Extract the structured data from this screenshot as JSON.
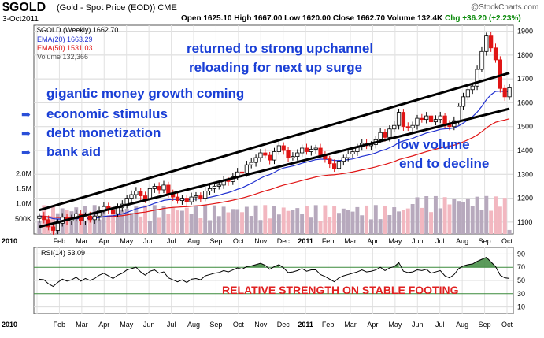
{
  "header": {
    "ticker": "$GOLD",
    "name": "(Gold - Spot Price (EOD)) CME",
    "site": "@StockCharts.com",
    "date": "3-Oct2011",
    "ohlc": "Open 1625.10  High 1667.00  Low 1620.00  Close 1662.70  Volume 132.4K",
    "chg": "Chg +36.20 (+2.23%)"
  },
  "legend": {
    "price": "$GOLD (Weekly) 1662.70",
    "ema20": "EMA(20) 1663.29",
    "ema50": "EMA(50) 1531.03",
    "volume": "Volume 132,366",
    "rsi": "RSI(14) 53.09"
  },
  "annotations": {
    "line1": "returned to strong upchannel",
    "line2": "reloading for next up surge",
    "money": "gigantic money growth coming",
    "item1": "economic stimulus",
    "item2": "debt monetization",
    "item3": "bank aid",
    "low1": "low volume",
    "low2": "end to decline",
    "rsi_note": "RELATIVE STRENGTH ON STABLE FOOTING"
  },
  "colors": {
    "up": "#000000",
    "down": "#e01515",
    "ema20": "#1f2fd0",
    "ema50": "#e01515",
    "vol_up": "#b7a9bd",
    "vol_down": "#f2b7c0",
    "rsi_fill": "#3e8a3e",
    "annotation": "#1a3fd6",
    "channel": "#000000"
  },
  "chart_data": [
    {
      "type": "candlestick",
      "title": "$GOLD (Weekly)",
      "ylim": [
        1050,
        1925
      ],
      "y_ticks": [
        1100,
        1200,
        1300,
        1400,
        1500,
        1600,
        1700,
        1800,
        1900
      ],
      "x_labels": [
        "2010",
        "Feb",
        "Mar",
        "Apr",
        "May",
        "Jun",
        "Jul",
        "Aug",
        "Sep",
        "Oct",
        "Nov",
        "Dec",
        "2011",
        "Feb",
        "Mar",
        "Apr",
        "May",
        "Jun",
        "Jul",
        "Aug",
        "Sep",
        "Oct"
      ],
      "close": [
        1125,
        1110,
        1080,
        1065,
        1095,
        1120,
        1105,
        1115,
        1135,
        1105,
        1125,
        1110,
        1125,
        1150,
        1165,
        1150,
        1135,
        1160,
        1175,
        1200,
        1215,
        1230,
        1210,
        1195,
        1240,
        1250,
        1235,
        1255,
        1220,
        1205,
        1190,
        1200,
        1185,
        1205,
        1210,
        1200,
        1230,
        1240,
        1250,
        1255,
        1275,
        1270,
        1290,
        1310,
        1305,
        1340,
        1350,
        1370,
        1390,
        1380,
        1360,
        1395,
        1420,
        1400,
        1370,
        1375,
        1390,
        1410,
        1395,
        1405,
        1410,
        1380,
        1365,
        1345,
        1325,
        1355,
        1370,
        1385,
        1395,
        1415,
        1430,
        1420,
        1425,
        1445,
        1475,
        1455,
        1490,
        1505,
        1560,
        1500,
        1495,
        1505,
        1535,
        1530,
        1545,
        1520,
        1530,
        1545,
        1510,
        1500,
        1525,
        1585,
        1625,
        1655,
        1670,
        1740,
        1815,
        1880,
        1830,
        1780,
        1660,
        1625,
        1662.7
      ],
      "ema20_last": 1663.29,
      "ema50_last": 1531.03,
      "channel_upper": [
        [
          0,
          1150
        ],
        [
          102,
          1725
        ]
      ],
      "channel_lower": [
        [
          0,
          1080
        ],
        [
          102,
          1575
        ]
      ]
    },
    {
      "type": "bar",
      "title": "Volume",
      "y_ticks_labels": [
        "500K",
        "1.0M",
        "1.5M",
        "2.0M"
      ],
      "y_ticks": [
        500000,
        1000000,
        1500000,
        2000000
      ],
      "ylim": [
        0,
        2300000
      ],
      "last": 132366
    },
    {
      "type": "line",
      "title": "RSI(14)",
      "ylim": [
        0,
        100
      ],
      "y_ticks": [
        10,
        30,
        50,
        70,
        90
      ],
      "last": 53.09,
      "values": [
        52,
        51,
        45,
        41,
        47,
        52,
        49,
        51,
        55,
        49,
        53,
        50,
        53,
        58,
        61,
        57,
        53,
        58,
        61,
        66,
        68,
        70,
        63,
        58,
        64,
        66,
        61,
        63,
        54,
        51,
        48,
        51,
        47,
        52,
        53,
        51,
        57,
        59,
        61,
        62,
        65,
        63,
        66,
        69,
        67,
        71,
        72,
        74,
        76,
        73,
        67,
        71,
        74,
        69,
        62,
        63,
        65,
        68,
        64,
        66,
        66,
        59,
        56,
        52,
        48,
        54,
        57,
        59,
        61,
        63,
        66,
        63,
        64,
        66,
        70,
        65,
        69,
        71,
        77,
        64,
        62,
        63,
        66,
        65,
        67,
        61,
        63,
        65,
        57,
        54,
        59,
        68,
        72,
        74,
        75,
        79,
        82,
        85,
        78,
        71,
        58,
        54,
        53.09
      ]
    }
  ]
}
